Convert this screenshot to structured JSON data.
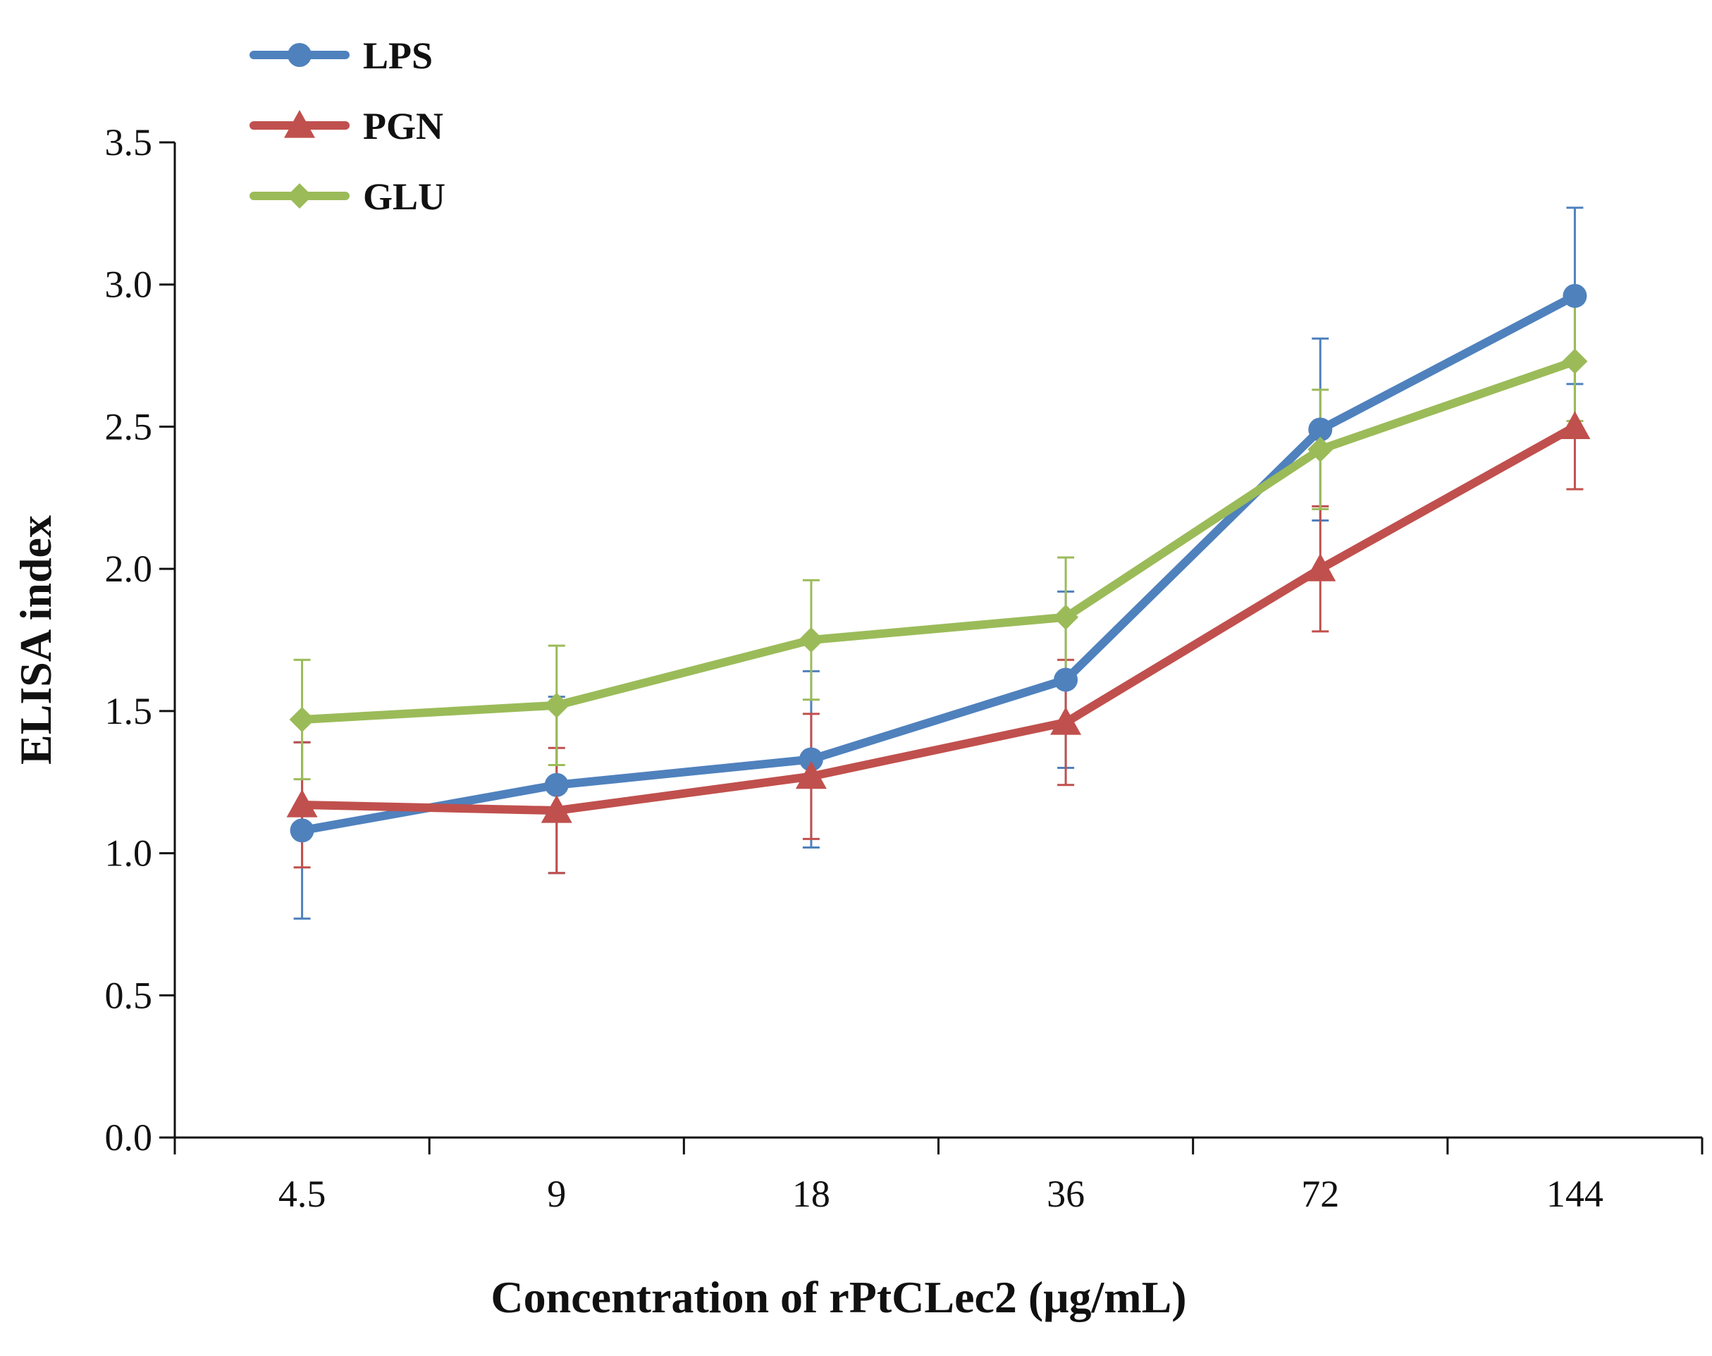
{
  "chart_data": {
    "type": "line",
    "xlabel": "Concentration of  rPtCLec2 (μg/mL)",
    "ylabel": "ELISA index",
    "categories": [
      "4.5",
      "9",
      "18",
      "36",
      "72",
      "144"
    ],
    "ylim": [
      0,
      3.5
    ],
    "yticks": [
      "0.0",
      "0.5",
      "1.0",
      "1.5",
      "2.0",
      "2.5",
      "3.0",
      "3.5"
    ],
    "grid": false,
    "legend_position": "top-left",
    "series": [
      {
        "name": "LPS",
        "color": "#4f81bd",
        "marker": "circle",
        "values": [
          1.08,
          1.24,
          1.33,
          1.61,
          2.49,
          2.96
        ],
        "errors": [
          0.31,
          0.31,
          0.31,
          0.31,
          0.32,
          0.31
        ]
      },
      {
        "name": "PGN",
        "color": "#c0504d",
        "marker": "triangle",
        "values": [
          1.17,
          1.15,
          1.27,
          1.46,
          2.0,
          2.5
        ],
        "errors": [
          0.22,
          0.22,
          0.22,
          0.22,
          0.22,
          0.22
        ]
      },
      {
        "name": "GLU",
        "color": "#9bbb59",
        "marker": "diamond",
        "values": [
          1.47,
          1.52,
          1.75,
          1.83,
          2.42,
          2.73
        ],
        "errors": [
          0.21,
          0.21,
          0.21,
          0.21,
          0.21,
          0.21
        ]
      }
    ]
  }
}
